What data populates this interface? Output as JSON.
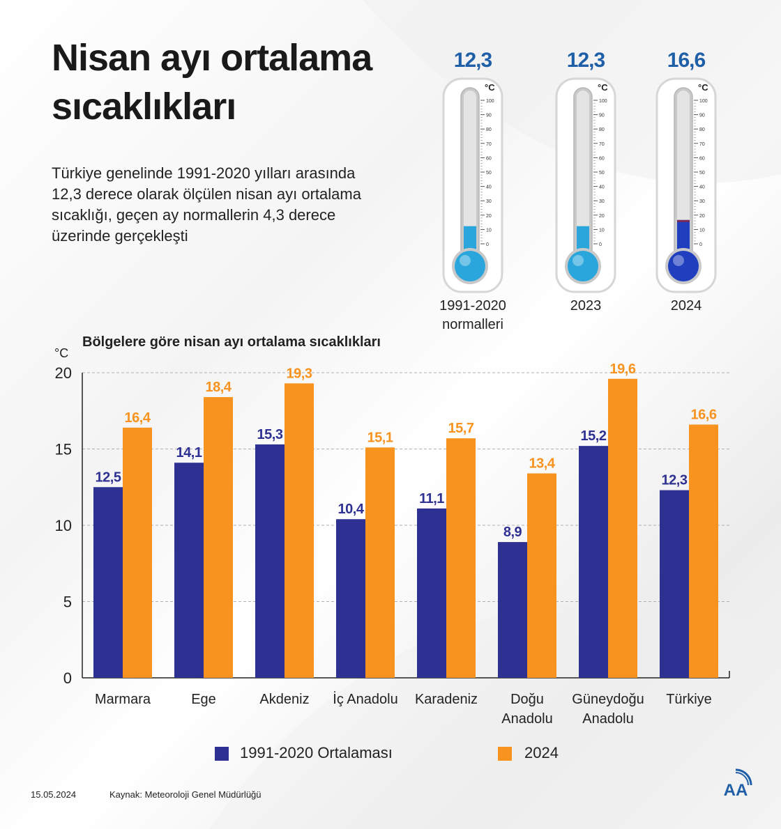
{
  "title": "Nisan ayı ortalama sıcaklıkları",
  "intro": "Türkiye genelinde 1991-2020 yılları arasında 12,3 derece olarak ölçülen nisan ayı ortalama sıcaklığı, geçen ay normallerin 4,3 derece üzerinde gerçekleşti",
  "thermometers": [
    {
      "value_label": "12,3",
      "value": 12.3,
      "label_line1": "1991-2020",
      "label_line2": "normalleri",
      "fill": "#2aa6dc"
    },
    {
      "value_label": "12,3",
      "value": 12.3,
      "label_line1": "2023",
      "label_line2": "",
      "fill": "#2aa6dc"
    },
    {
      "value_label": "16,6",
      "value": 16.6,
      "label_line1": "2024",
      "label_line2": "",
      "fill": "#1f3fbf"
    }
  ],
  "thermo_unit": "°C",
  "thermo_scale": [
    "100",
    "90",
    "80",
    "70",
    "60",
    "50",
    "40",
    "30",
    "20",
    "10",
    "0"
  ],
  "chart_data": {
    "type": "bar",
    "title": "Bölgelere göre nisan ayı ortalama sıcaklıkları",
    "ylabel": "°C",
    "ylim": [
      0,
      20
    ],
    "yticks": [
      0,
      5,
      10,
      15,
      20
    ],
    "categories": [
      [
        "Marmara"
      ],
      [
        "Ege"
      ],
      [
        "Akdeniz"
      ],
      [
        "İç Anadolu"
      ],
      [
        "Karadeniz"
      ],
      [
        "Doğu",
        "Anadolu"
      ],
      [
        "Güneydoğu",
        "Anadolu"
      ],
      [
        "Türkiye"
      ]
    ],
    "series": [
      {
        "name": "1991-2020 Ortalaması",
        "color": "#2e3192",
        "values": [
          12.5,
          14.1,
          15.3,
          10.4,
          11.1,
          8.9,
          15.2,
          12.3
        ],
        "labels": [
          "12,5",
          "14,1",
          "15,3",
          "10,4",
          "11,1",
          "8,9",
          "15,2",
          "12,3"
        ],
        "label_color": "#2e3192"
      },
      {
        "name": "2024",
        "color": "#f7931e",
        "values": [
          16.4,
          18.4,
          19.3,
          15.1,
          15.7,
          13.4,
          19.6,
          16.6
        ],
        "labels": [
          "16,4",
          "18,4",
          "19,3",
          "15,1",
          "15,7",
          "13,4",
          "19,6",
          "16,6"
        ],
        "label_color": "#f7931e"
      }
    ]
  },
  "legend": {
    "series1": "1991-2020 Ortalaması",
    "series2": "2024"
  },
  "footer": {
    "date": "15.05.2024",
    "source": "Kaynak: Meteoroloji Genel Müdürlüğü"
  },
  "logo_text": "AA"
}
